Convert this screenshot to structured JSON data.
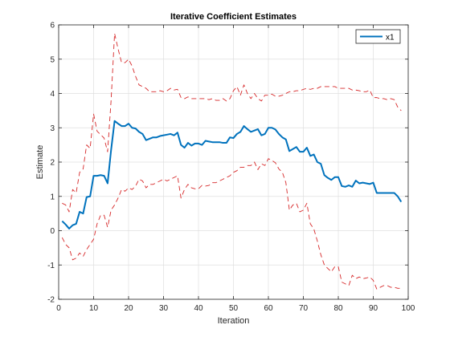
{
  "chart_data": {
    "type": "line",
    "title": "Iterative Coefficient Estimates",
    "xlabel": "Iteration",
    "ylabel": "Estimate",
    "xlim": [
      0,
      100
    ],
    "ylim": [
      -2,
      6
    ],
    "xticks": [
      0,
      10,
      20,
      30,
      40,
      50,
      60,
      70,
      80,
      90,
      100
    ],
    "yticks": [
      -2,
      -1,
      0,
      1,
      2,
      3,
      4,
      5,
      6
    ],
    "grid": true,
    "legend": {
      "position": "top-right",
      "entries": [
        "x1"
      ]
    },
    "x": [
      1,
      2,
      3,
      4,
      5,
      6,
      7,
      8,
      9,
      10,
      11,
      12,
      13,
      14,
      15,
      16,
      17,
      18,
      19,
      20,
      21,
      22,
      23,
      24,
      25,
      26,
      27,
      28,
      29,
      30,
      31,
      32,
      33,
      34,
      35,
      36,
      37,
      38,
      39,
      40,
      41,
      42,
      43,
      44,
      45,
      46,
      47,
      48,
      49,
      50,
      51,
      52,
      53,
      54,
      55,
      56,
      57,
      58,
      59,
      60,
      61,
      62,
      63,
      64,
      65,
      66,
      67,
      68,
      69,
      70,
      71,
      72,
      73,
      74,
      75,
      76,
      77,
      78,
      79,
      80,
      81,
      82,
      83,
      84,
      85,
      86,
      87,
      88,
      89,
      90,
      91,
      92,
      93,
      94,
      95,
      96,
      97,
      98
    ],
    "series": [
      {
        "name": "x1",
        "style": "solid",
        "color": "#0072bd",
        "values": [
          0.28,
          0.18,
          0.06,
          0.16,
          0.2,
          0.55,
          0.5,
          0.98,
          1.0,
          1.6,
          1.6,
          1.62,
          1.6,
          1.38,
          2.35,
          3.2,
          3.12,
          3.05,
          3.05,
          3.12,
          3.0,
          2.98,
          2.88,
          2.82,
          2.64,
          2.68,
          2.72,
          2.72,
          2.76,
          2.78,
          2.8,
          2.82,
          2.78,
          2.86,
          2.5,
          2.42,
          2.56,
          2.48,
          2.54,
          2.54,
          2.5,
          2.62,
          2.6,
          2.58,
          2.58,
          2.58,
          2.56,
          2.56,
          2.72,
          2.7,
          2.82,
          2.88,
          3.05,
          2.96,
          2.88,
          2.92,
          2.96,
          2.78,
          2.82,
          3.0,
          3.0,
          2.95,
          2.82,
          2.72,
          2.66,
          2.32,
          2.38,
          2.44,
          2.3,
          2.3,
          2.42,
          2.18,
          2.22,
          2.0,
          1.95,
          1.62,
          1.54,
          1.48,
          1.56,
          1.56,
          1.3,
          1.28,
          1.32,
          1.28,
          1.46,
          1.38,
          1.4,
          1.38,
          1.36,
          1.4,
          1.1,
          1.1,
          1.1,
          1.1,
          1.1,
          1.1,
          1.0,
          0.84
        ]
      },
      {
        "name": "",
        "style": "dashed",
        "color": "#d62728",
        "values": [
          0.8,
          0.75,
          0.55,
          1.2,
          1.1,
          1.7,
          1.8,
          2.5,
          2.4,
          3.4,
          2.9,
          2.8,
          2.7,
          2.3,
          3.8,
          5.75,
          5.3,
          4.9,
          4.9,
          5.0,
          4.8,
          4.5,
          4.25,
          4.2,
          4.15,
          4.05,
          4.05,
          4.05,
          4.08,
          4.05,
          4.08,
          4.15,
          4.1,
          4.12,
          3.88,
          3.85,
          3.9,
          3.85,
          3.85,
          3.85,
          3.85,
          3.85,
          3.82,
          3.85,
          3.8,
          3.8,
          3.85,
          3.78,
          3.85,
          4.08,
          4.2,
          3.95,
          4.25,
          4.0,
          3.85,
          4.0,
          3.85,
          3.78,
          3.95,
          3.95,
          3.98,
          3.92,
          3.92,
          3.95,
          4.0,
          4.05,
          4.05,
          4.08,
          4.08,
          4.12,
          4.15,
          4.12,
          4.15,
          4.15,
          4.2,
          4.2,
          4.2,
          4.2,
          4.2,
          4.15,
          4.15,
          4.15,
          4.15,
          4.1,
          4.1,
          4.08,
          4.05,
          4.05,
          4.1,
          3.88,
          3.88,
          3.85,
          3.85,
          3.82,
          3.85,
          3.82,
          3.6,
          3.5
        ]
      },
      {
        "name": "",
        "style": "dashed",
        "color": "#d62728",
        "values": [
          -0.2,
          -0.4,
          -0.5,
          -0.85,
          -0.8,
          -0.65,
          -0.75,
          -0.55,
          -0.4,
          -0.25,
          0.2,
          0.45,
          0.45,
          0.1,
          0.6,
          0.75,
          0.95,
          1.2,
          1.15,
          1.25,
          1.2,
          1.3,
          1.5,
          1.45,
          1.25,
          1.35,
          1.35,
          1.4,
          1.45,
          1.5,
          1.45,
          1.5,
          1.55,
          1.6,
          0.95,
          1.2,
          1.35,
          1.25,
          1.22,
          1.22,
          1.32,
          1.3,
          1.32,
          1.4,
          1.4,
          1.45,
          1.5,
          1.55,
          1.6,
          1.7,
          1.75,
          1.85,
          1.85,
          1.9,
          1.9,
          2.0,
          1.78,
          1.95,
          1.9,
          2.1,
          2.05,
          1.98,
          1.8,
          1.7,
          1.4,
          0.6,
          0.75,
          0.8,
          0.55,
          0.6,
          0.8,
          0.2,
          0.05,
          -0.3,
          -0.7,
          -1.0,
          -1.1,
          -1.2,
          -1.05,
          -1.05,
          -1.5,
          -1.55,
          -1.6,
          -1.3,
          -1.4,
          -1.35,
          -1.4,
          -1.38,
          -1.35,
          -1.45,
          -1.7,
          -1.65,
          -1.6,
          -1.6,
          -1.65,
          -1.65,
          -1.68,
          -1.68
        ]
      }
    ]
  }
}
